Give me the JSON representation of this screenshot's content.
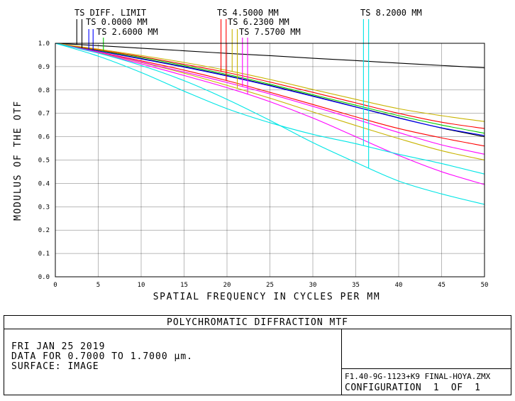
{
  "footer": {
    "title": "POLYCHROMATIC DIFFRACTION MTF",
    "date": "FRI JAN 25 2019",
    "data_range": "DATA FOR 0.7000 TO 1.7000 µm.",
    "surface": "SURFACE: IMAGE",
    "file": "F1.40-9G-1123+K9 FINAL-HOYA.ZMX",
    "configuration": "CONFIGURATION  1  OF  1"
  },
  "legend_labels": [
    {
      "text": "TS DIFF. LIMIT",
      "color": "#000000"
    },
    {
      "text": "TS 0.0000 MM",
      "color": "#000000"
    },
    {
      "text": "TS 2.6000 MM",
      "color": "#0000ff"
    },
    {
      "text": "TS 4.5000 MM",
      "color": "#00cc00"
    },
    {
      "text": "TS 6.2300 MM",
      "color": "#ff0000"
    },
    {
      "text": "TS 7.5700 MM",
      "color": "#c8b400"
    },
    {
      "text": "TS 8.2000 MM",
      "color": "#ff00ff"
    }
  ],
  "chart_data": {
    "type": "line",
    "xlabel": "SPATIAL FREQUENCY IN CYCLES PER MM",
    "ylabel": "MODULUS OF THE OTF",
    "xlim": [
      0,
      50
    ],
    "ylim": [
      0,
      1
    ],
    "grid": true,
    "x_ticks": [
      0,
      5,
      10,
      15,
      20,
      25,
      30,
      35,
      40,
      45,
      50
    ],
    "x_tick_labels": [
      "0",
      "5",
      "10",
      "15",
      "20",
      "25",
      "30",
      "35",
      "40",
      "45",
      "50"
    ],
    "y_ticks": [
      0,
      0.1,
      0.2,
      0.3,
      0.4,
      0.5,
      0.6,
      0.7,
      0.8,
      0.9,
      1.0
    ],
    "y_tick_labels": [
      "0.0",
      "0.1",
      "0.2",
      "0.3",
      "0.4",
      "0.5",
      "0.6",
      "0.7",
      "0.8",
      "0.9",
      "1.0"
    ],
    "x": [
      0,
      5,
      10,
      15,
      20,
      25,
      30,
      35,
      40,
      45,
      50
    ],
    "series": [
      {
        "color": "#000000",
        "values": [
          1.0,
          0.99,
          0.979,
          0.968,
          0.957,
          0.947,
          0.936,
          0.926,
          0.915,
          0.905,
          0.895
        ]
      },
      {
        "color": "#000000",
        "values": [
          1.0,
          0.968,
          0.935,
          0.9,
          0.862,
          0.82,
          0.775,
          0.728,
          0.681,
          0.637,
          0.6
        ]
      },
      {
        "color": "#0000ff",
        "values": [
          1.0,
          0.967,
          0.933,
          0.898,
          0.86,
          0.818,
          0.773,
          0.727,
          0.68,
          0.638,
          0.605
        ]
      },
      {
        "color": "#00cc00",
        "values": [
          1.0,
          0.97,
          0.94,
          0.905,
          0.867,
          0.825,
          0.78,
          0.735,
          0.69,
          0.65,
          0.615
        ]
      },
      {
        "color": "#ff0000",
        "values": [
          1.0,
          0.972,
          0.943,
          0.91,
          0.875,
          0.834,
          0.79,
          0.745,
          0.7,
          0.662,
          0.635
        ]
      },
      {
        "color": "#ff0000",
        "values": [
          1.0,
          0.963,
          0.925,
          0.885,
          0.84,
          0.79,
          0.738,
          0.685,
          0.635,
          0.595,
          0.56
        ]
      },
      {
        "color": "#c8b400",
        "values": [
          1.0,
          0.975,
          0.948,
          0.918,
          0.884,
          0.845,
          0.802,
          0.76,
          0.72,
          0.69,
          0.665
        ]
      },
      {
        "color": "#c8b400",
        "values": [
          1.0,
          0.96,
          0.918,
          0.872,
          0.82,
          0.765,
          0.706,
          0.648,
          0.592,
          0.54,
          0.5
        ]
      },
      {
        "color": "#ff00ff",
        "values": [
          1.0,
          0.962,
          0.92,
          0.877,
          0.832,
          0.783,
          0.73,
          0.675,
          0.618,
          0.565,
          0.525
        ]
      },
      {
        "color": "#ff00ff",
        "values": [
          1.0,
          0.958,
          0.912,
          0.862,
          0.81,
          0.75,
          0.68,
          0.6,
          0.52,
          0.45,
          0.395
        ]
      },
      {
        "color": "#00e5e5",
        "values": [
          1.0,
          0.945,
          0.875,
          0.795,
          0.72,
          0.66,
          0.61,
          0.57,
          0.525,
          0.485,
          0.44
        ]
      },
      {
        "color": "#00e5e5",
        "values": [
          1.0,
          0.958,
          0.905,
          0.84,
          0.76,
          0.67,
          0.575,
          0.49,
          0.41,
          0.355,
          0.31
        ]
      }
    ]
  }
}
